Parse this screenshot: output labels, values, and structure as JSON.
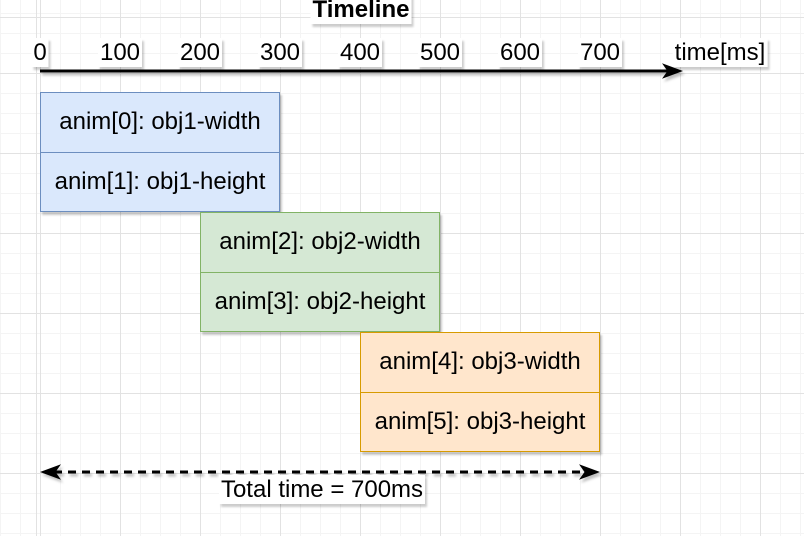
{
  "title": "Timeline",
  "axis": {
    "unit_label": "time[ms]",
    "ticks": [
      {
        "label": "0",
        "t": 0
      },
      {
        "label": "100",
        "t": 100
      },
      {
        "label": "200",
        "t": 200
      },
      {
        "label": "300",
        "t": 300
      },
      {
        "label": "400",
        "t": 400
      },
      {
        "label": "500",
        "t": 500
      },
      {
        "label": "600",
        "t": 600
      },
      {
        "label": "700",
        "t": 700
      }
    ]
  },
  "groups": [
    {
      "name": "obj1",
      "fill": "#dae8fc",
      "border": "#6c8ebf",
      "bars": [
        {
          "label": "anim[0]: obj1-width",
          "start": 0,
          "end": 300
        },
        {
          "label": "anim[1]: obj1-height",
          "start": 0,
          "end": 300
        }
      ]
    },
    {
      "name": "obj2",
      "fill": "#d5e8d4",
      "border": "#82b366",
      "bars": [
        {
          "label": "anim[2]: obj2-width",
          "start": 200,
          "end": 500
        },
        {
          "label": "anim[3]: obj2-height",
          "start": 200,
          "end": 500
        }
      ]
    },
    {
      "name": "obj3",
      "fill": "#ffe6cc",
      "border": "#d79b00",
      "bars": [
        {
          "label": "anim[4]: obj3-width",
          "start": 400,
          "end": 700
        },
        {
          "label": "anim[5]: obj3-height",
          "start": 400,
          "end": 700
        }
      ]
    }
  ],
  "total_arrow": {
    "label": "Total time = 700ms",
    "start": 0,
    "end": 700
  }
}
